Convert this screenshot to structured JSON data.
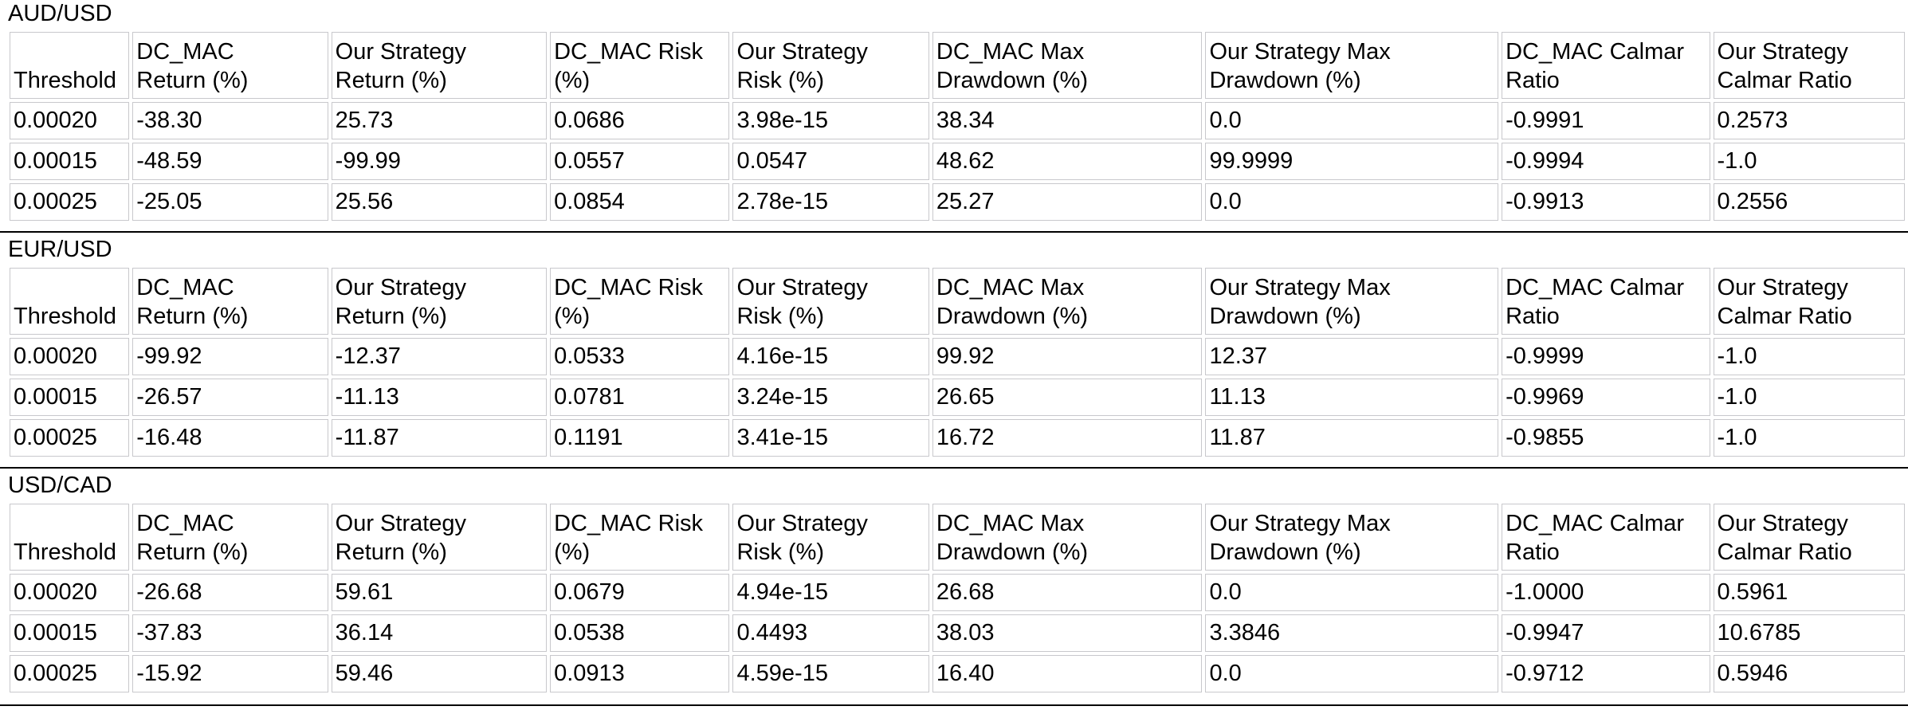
{
  "columns": [
    [
      "Threshold"
    ],
    [
      "DC_MAC",
      "Return (%)"
    ],
    [
      "Our Strategy",
      "Return (%)"
    ],
    [
      "DC_MAC Risk",
      "(%)"
    ],
    [
      "Our Strategy",
      "Risk (%)"
    ],
    [
      "DC_MAC Max",
      "Drawdown (%)"
    ],
    [
      "Our Strategy Max",
      "Drawdown (%)"
    ],
    [
      "DC_MAC Calmar",
      "Ratio"
    ],
    [
      "Our Strategy",
      "Calmar Ratio"
    ]
  ],
  "sections": [
    {
      "title": "AUD/USD",
      "rows": [
        [
          "0.00020",
          "-38.30",
          "25.73",
          "0.0686",
          "3.98e-15",
          "38.34",
          "0.0",
          "-0.9991",
          "0.2573"
        ],
        [
          "0.00015",
          "-48.59",
          "-99.99",
          "0.0557",
          "0.0547",
          "48.62",
          "99.9999",
          "-0.9994",
          "-1.0"
        ],
        [
          "0.00025",
          "-25.05",
          "25.56",
          "0.0854",
          "2.78e-15",
          "25.27",
          "0.0",
          "-0.9913",
          "0.2556"
        ]
      ]
    },
    {
      "title": "EUR/USD",
      "rows": [
        [
          "0.00020",
          "-99.92",
          "-12.37",
          "0.0533",
          "4.16e-15",
          "99.92",
          "12.37",
          "-0.9999",
          "-1.0"
        ],
        [
          "0.00015",
          "-26.57",
          "-11.13",
          "0.0781",
          "3.24e-15",
          "26.65",
          "11.13",
          "-0.9969",
          "-1.0"
        ],
        [
          "0.00025",
          "-16.48",
          "-11.87",
          "0.1191",
          "3.41e-15",
          "16.72",
          "11.87",
          "-0.9855",
          "-1.0"
        ]
      ]
    },
    {
      "title": "USD/CAD",
      "rows": [
        [
          "0.00020",
          "-26.68",
          "59.61",
          "0.0679",
          "4.94e-15",
          "26.68",
          "0.0",
          "-1.0000",
          "0.5961"
        ],
        [
          "0.00015",
          "-37.83",
          "36.14",
          "0.0538",
          "0.4493",
          "38.03",
          "3.3846",
          "-0.9947",
          "10.6785"
        ],
        [
          "0.00025",
          "-15.92",
          "59.46",
          "0.0913",
          "4.59e-15",
          "16.40",
          "0.0",
          "-0.9712",
          "0.5946"
        ]
      ]
    }
  ]
}
